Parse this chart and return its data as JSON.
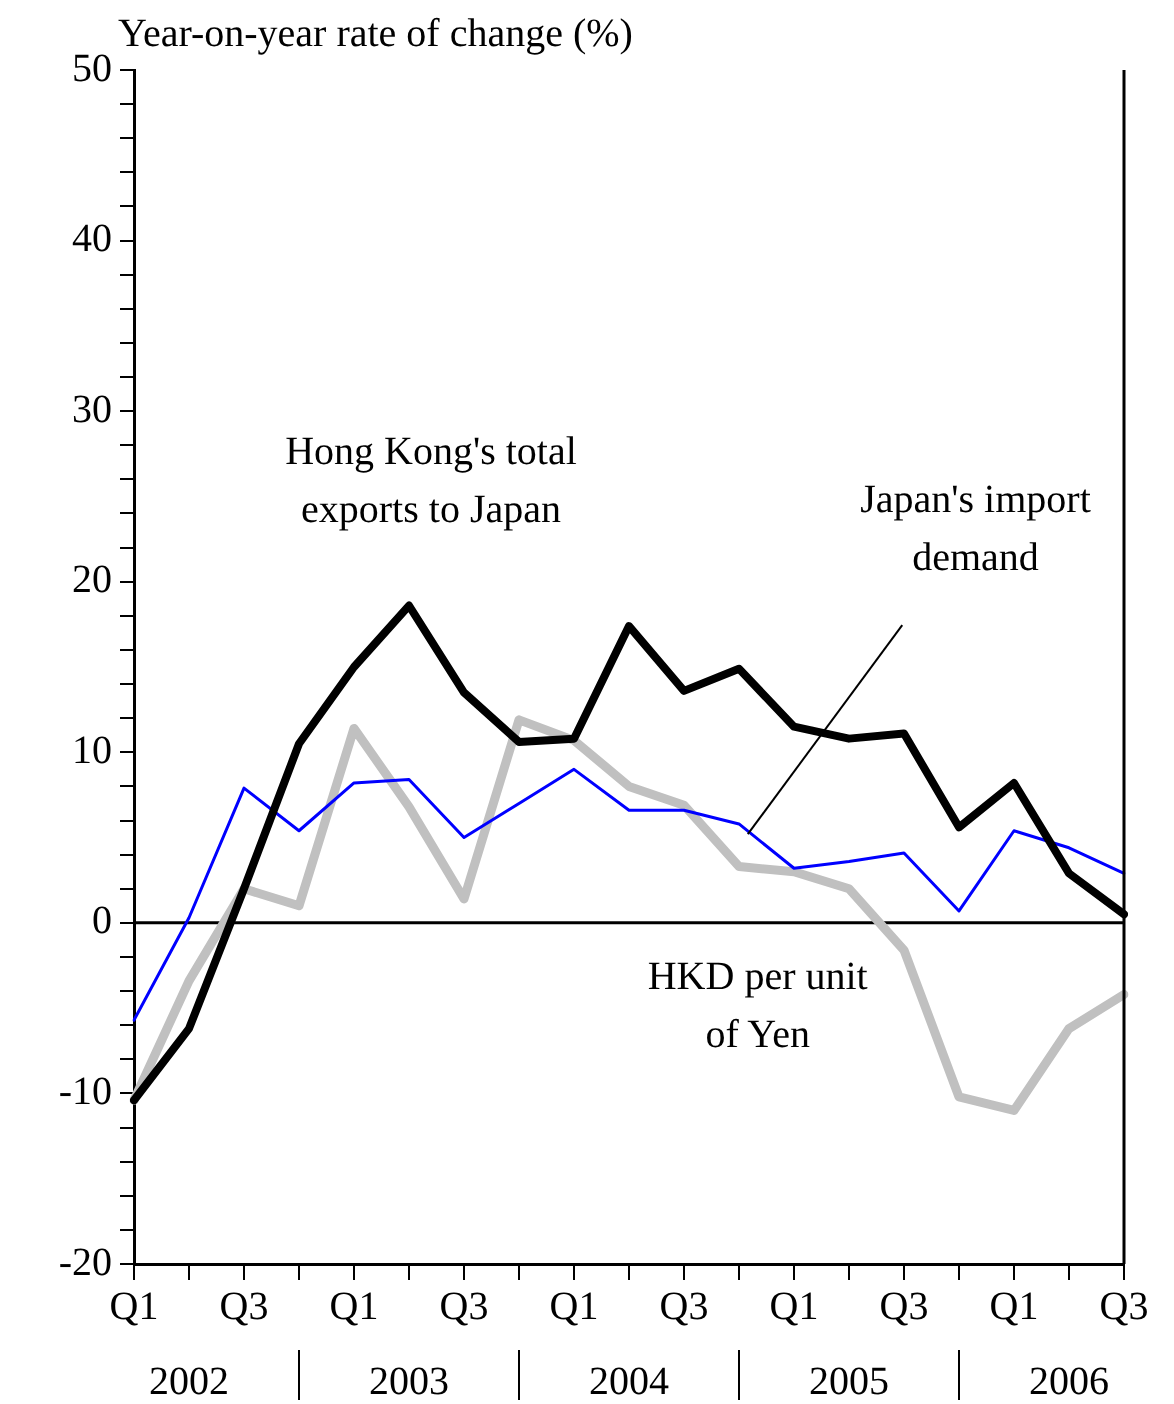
{
  "chart_data": {
    "type": "line",
    "ylabel": "Year-on-year rate of change (%)",
    "categories": [
      "Q1",
      null,
      "Q3",
      null,
      "Q1",
      null,
      "Q3",
      null,
      "Q1",
      null,
      "Q3",
      null,
      "Q1",
      null,
      "Q3",
      null,
      "Q1",
      null,
      "Q3"
    ],
    "series": [
      {
        "name": "Hong Kong's total exports to Japan",
        "color": "#000000",
        "values": [
          -10.4,
          -6.2,
          2,
          10.5,
          15,
          18.6,
          13.5,
          10.6,
          10.8,
          17.4,
          13.6,
          14.9,
          11.5,
          10.8,
          11.1,
          5.6,
          8.2,
          2.9,
          0.5
        ]
      },
      {
        "name": "Japan's import demand",
        "color": "#0000ff",
        "values": [
          -5.7,
          0.3,
          7.9,
          5.4,
          8.2,
          8.4,
          5,
          7,
          9,
          6.6,
          6.6,
          5.8,
          3.2,
          3.6,
          4.1,
          0.7,
          5.4,
          4.4,
          2.9
        ]
      },
      {
        "name": "HKD per unit of Yen",
        "color": "#c0c0c0",
        "values": [
          -10.4,
          -3.4,
          2,
          1,
          11.4,
          6.8,
          1.4,
          11.9,
          10.7,
          8,
          6.9,
          3.3,
          3,
          2,
          -1.6,
          -10.2,
          -11,
          -6.2,
          -4.2
        ]
      }
    ],
    "ylim": [
      -20,
      50
    ],
    "yticks": [
      -20,
      {
        "value": -18,
        "label": null
      },
      {
        "value": -16,
        "label": null
      },
      {
        "value": -14,
        "label": null
      },
      {
        "value": -12,
        "label": null
      },
      -10,
      {
        "value": -8,
        "label": null
      },
      {
        "value": -6,
        "label": null
      },
      {
        "value": -4,
        "label": null
      },
      {
        "value": -2,
        "label": null
      },
      0,
      {
        "value": 2,
        "label": null
      },
      {
        "value": 4,
        "label": null
      },
      {
        "value": 6,
        "label": null
      },
      {
        "value": 8,
        "label": null
      },
      10,
      {
        "value": 12,
        "label": null
      },
      {
        "value": 14,
        "label": null
      },
      {
        "value": 16,
        "label": null
      },
      {
        "value": 18,
        "label": null
      },
      20,
      {
        "value": 22,
        "label": null
      },
      {
        "value": 24,
        "label": null
      },
      {
        "value": 26,
        "label": null
      },
      {
        "value": 28,
        "label": null
      },
      30,
      {
        "value": 32,
        "label": null
      },
      {
        "value": 34,
        "label": null
      },
      {
        "value": 36,
        "label": null
      },
      {
        "value": 38,
        "label": null
      },
      40,
      {
        "value": 42,
        "label": null
      },
      {
        "value": 44,
        "label": null
      },
      {
        "value": 46,
        "label": null
      },
      {
        "value": 48,
        "label": null
      },
      50
    ],
    "ref_lines": [
      {
        "axis": "y",
        "value": 0,
        "color": "#000000"
      }
    ],
    "annotations": [
      "2002",
      "2003",
      "2004",
      "2005",
      "2006"
    ],
    "grid": false,
    "legend": false,
    "marker": "none",
    "line_style": "solid"
  }
}
